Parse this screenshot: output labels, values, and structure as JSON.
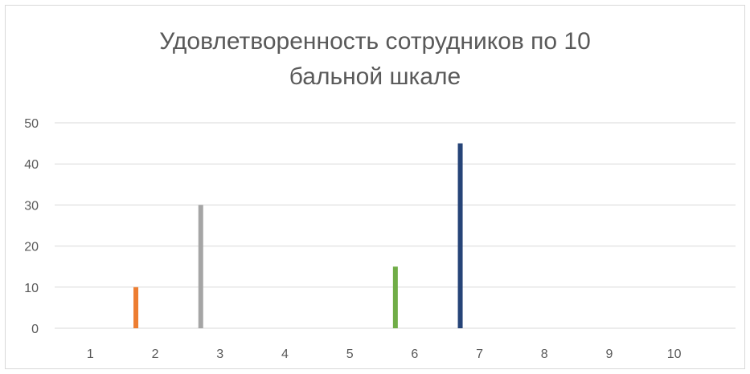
{
  "chart_data": {
    "type": "bar",
    "title_lines": [
      "Удовлетворенность сотрудников по 10",
      "бальной шкале"
    ],
    "categories": [
      "1",
      "2",
      "3",
      "4",
      "5",
      "6",
      "7",
      "8",
      "9",
      "10"
    ],
    "series": [
      {
        "values": [
          0,
          10,
          30,
          0,
          0,
          15,
          45,
          0,
          0,
          0
        ]
      }
    ],
    "bar_colors": [
      "#4472c4",
      "#ed7d31",
      "#a5a5a5",
      "#ffc000",
      "#5b9bd5",
      "#70ad47",
      "#264478",
      "#9e480e",
      "#636363",
      "#997300"
    ],
    "y_ticks": [
      0,
      10,
      20,
      30,
      40,
      50
    ],
    "ylim": [
      0,
      50
    ],
    "grid": true,
    "legend": "none"
  }
}
